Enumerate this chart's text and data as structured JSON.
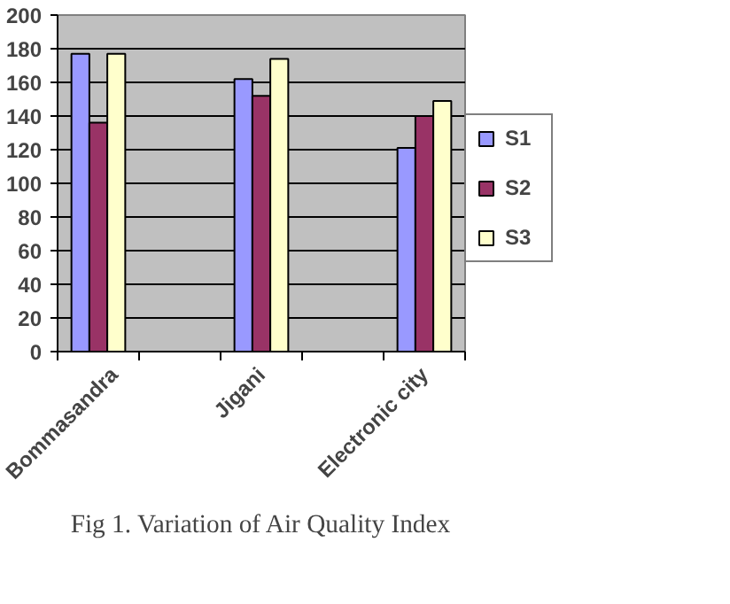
{
  "chart_data": {
    "type": "bar",
    "title": "Fig 1. Variation of Air Quality Index",
    "categories": [
      "Bommasandra",
      null,
      "Jigani",
      null,
      "Electronic city"
    ],
    "series": [
      {
        "name": "S1",
        "color": "#9999ff",
        "values": [
          177,
          null,
          162,
          null,
          121
        ]
      },
      {
        "name": "S2",
        "color": "#993366",
        "values": [
          136,
          null,
          152,
          null,
          140
        ]
      },
      {
        "name": "S3",
        "color": "#ffffcc",
        "values": [
          177,
          null,
          174,
          null,
          149
        ]
      }
    ],
    "ylim": [
      0,
      200
    ],
    "yticks": [
      0,
      20,
      40,
      60,
      80,
      100,
      120,
      140,
      160,
      180,
      200
    ],
    "grid": "y",
    "legend": "right"
  }
}
